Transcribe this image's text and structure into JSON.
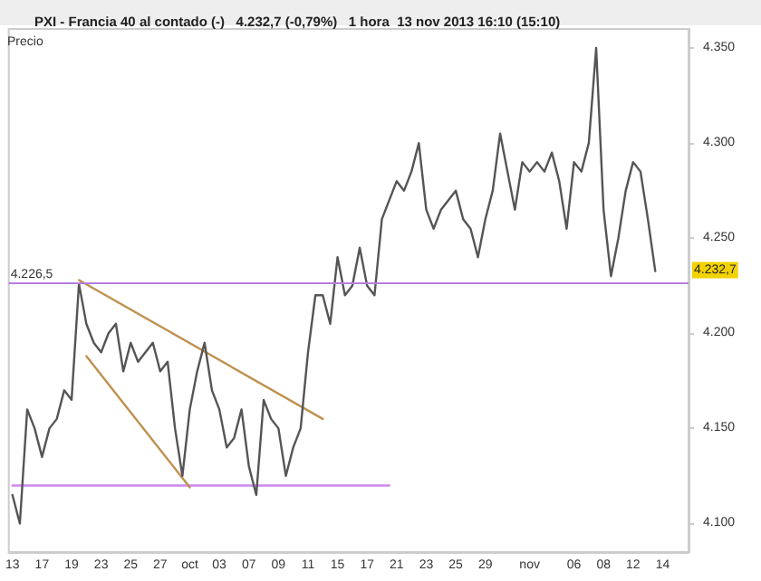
{
  "chart_data": {
    "type": "line",
    "title": "PXI - Francia 40 al contado (-)   4.232,7 (-0,79%)   1 hora  13 nov 2013 16:10 (15:10)",
    "ylabel": "Precio",
    "categories": [
      "13",
      null,
      null,
      null,
      "17",
      null,
      null,
      null,
      "19",
      null,
      null,
      null,
      "23",
      null,
      null,
      null,
      "25",
      null,
      null,
      null,
      "27",
      null,
      null,
      null,
      "oct",
      null,
      null,
      null,
      "03",
      null,
      null,
      null,
      "07",
      null,
      null,
      null,
      "09",
      null,
      null,
      null,
      "11",
      null,
      null,
      null,
      "15",
      null,
      null,
      null,
      "17",
      null,
      null,
      null,
      "21",
      null,
      null,
      null,
      "23",
      null,
      null,
      null,
      "25",
      null,
      null,
      null,
      "29",
      null,
      null,
      null,
      null,
      null,
      "nov",
      null,
      null,
      null,
      null,
      null,
      "06",
      null,
      null,
      null,
      "08",
      null,
      null,
      null,
      "12",
      null,
      null,
      null,
      "14",
      null,
      null,
      null
    ],
    "series": [
      {
        "color": "#555555",
        "values": [
          4115,
          4100,
          4160,
          4150,
          4135,
          4150,
          4155,
          4170,
          4165,
          4226,
          4205,
          4195,
          4190,
          4200,
          4205,
          4180,
          4195,
          4185,
          4190,
          4195,
          4180,
          4185,
          4150,
          4125,
          4160,
          4180,
          4195,
          4170,
          4160,
          4140,
          4145,
          4160,
          4130,
          4115,
          4165,
          4155,
          4150,
          4125,
          4140,
          4150,
          4190,
          4220,
          4220,
          4205,
          4240,
          4220,
          4225,
          4245,
          4225,
          4220,
          4260,
          4270,
          4280,
          4275,
          4285,
          4300,
          4265,
          4255,
          4265,
          4270,
          4275,
          4260,
          4255,
          4240,
          4260,
          4275,
          4305,
          4285,
          4265,
          4290,
          4285,
          4290,
          4285,
          4295,
          4280,
          4255,
          4290,
          4285,
          4300,
          4350,
          4265,
          4230,
          4250,
          4275,
          4290,
          4285,
          4260,
          4232.7,
          null,
          null,
          null,
          null
        ]
      },
      {
        "color": "#c0904f",
        "values": [
          null,
          null,
          null,
          null,
          null,
          null,
          null,
          null,
          null,
          4228,
          null,
          null,
          null,
          null,
          null,
          null,
          null,
          null,
          null,
          null,
          null,
          null,
          null,
          null,
          null,
          null,
          null,
          null,
          null,
          null,
          null,
          null,
          null,
          null,
          null,
          null,
          null,
          null,
          null,
          null,
          null,
          null,
          4155,
          null,
          null,
          null,
          null,
          null,
          null,
          null,
          null,
          null,
          null,
          null,
          null,
          null,
          null,
          null,
          null,
          null,
          null,
          null,
          null,
          null,
          null,
          null,
          null,
          null,
          null,
          null,
          null,
          null,
          null,
          null,
          null,
          null,
          null,
          null,
          null,
          null,
          null,
          null,
          null,
          null,
          null,
          null,
          null,
          null,
          null,
          null,
          null,
          null
        ]
      },
      {
        "color": "#c0904f",
        "values": [
          null,
          null,
          null,
          null,
          null,
          null,
          null,
          null,
          null,
          null,
          4188,
          null,
          null,
          null,
          null,
          null,
          null,
          null,
          null,
          null,
          null,
          null,
          null,
          null,
          4119,
          null,
          null,
          null,
          null,
          null,
          null,
          null,
          null,
          null,
          null,
          null,
          null,
          null,
          null,
          null,
          null,
          null,
          null,
          null,
          null,
          null,
          null,
          null,
          null,
          null,
          null,
          null,
          null,
          null,
          null,
          null,
          null,
          null,
          null,
          null,
          null,
          null,
          null,
          null,
          null,
          null,
          null,
          null,
          null,
          null,
          null,
          null,
          null,
          null,
          null,
          null,
          null,
          null,
          null,
          null,
          null,
          null,
          null,
          null,
          null,
          null,
          null,
          null,
          null,
          null,
          null,
          null
        ]
      },
      {
        "color": "#cc88ee",
        "values": [
          4120,
          null,
          null,
          null,
          null,
          null,
          null,
          null,
          null,
          null,
          null,
          null,
          null,
          null,
          null,
          null,
          null,
          null,
          null,
          null,
          null,
          null,
          null,
          null,
          null,
          null,
          null,
          null,
          null,
          null,
          null,
          null,
          null,
          null,
          null,
          null,
          null,
          null,
          null,
          null,
          null,
          null,
          null,
          null,
          null,
          null,
          null,
          null,
          null,
          null,
          null,
          4120,
          null,
          null,
          null,
          null,
          null,
          null,
          null,
          null,
          null,
          null,
          null,
          null,
          null,
          null,
          null,
          null,
          null,
          null,
          null,
          null,
          null,
          null,
          null,
          null,
          null,
          null,
          null,
          null,
          null,
          null,
          null,
          null,
          null,
          null,
          null,
          null,
          null,
          null,
          null,
          null
        ]
      }
    ],
    "ylim": [
      4085,
      4360
    ],
    "yticks": [
      {
        "value": 4100,
        "label": "4.100"
      },
      {
        "value": 4150,
        "label": "4.150"
      },
      {
        "value": 4200,
        "label": "4.200"
      },
      {
        "value": 4250,
        "label": "4.250"
      },
      {
        "value": 4300,
        "label": "4.300"
      },
      {
        "value": 4350,
        "label": "4.350"
      }
    ],
    "ref_lines": [
      {
        "axis": "y",
        "value": 4226.5,
        "label": "4.226,5",
        "color": "#b57edc"
      }
    ],
    "annotations": [
      {
        "text": "4.232,7",
        "y": 4232.7
      }
    ],
    "grid": false,
    "marker": "none",
    "line_style": "solid"
  }
}
